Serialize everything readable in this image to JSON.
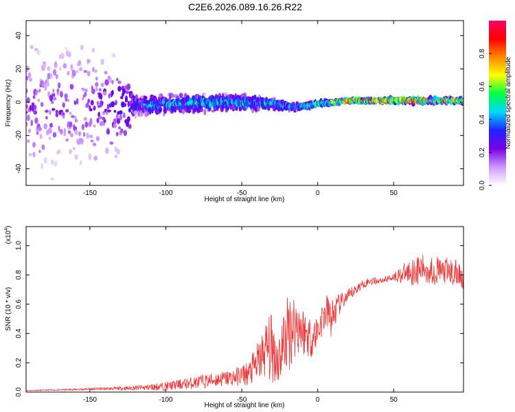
{
  "title": "C2E6.2026.089.16.26.R22",
  "chart_data": [
    {
      "type": "heatmap",
      "xlabel": "Height of straight line (km)",
      "ylabel": "Frequency (Hz)",
      "xlim": [
        -192,
        96
      ],
      "ylim": [
        -50,
        49
      ],
      "xticks": [
        -150,
        -100,
        -50,
        0,
        50
      ],
      "yticks": [
        -40,
        -20,
        0,
        20,
        40
      ],
      "colorbar": {
        "label": "Normalized spectral amplitude",
        "range": [
          0,
          1
        ],
        "ticks": [
          "0.0",
          "0.2",
          "0.4",
          "0.6",
          "0.8"
        ],
        "ticks_values": [
          0.0,
          0.2,
          0.4,
          0.6,
          0.8
        ],
        "colormap": [
          "#ffffff",
          "#cc99ff",
          "#7a00e6",
          "#2222ff",
          "#00d8ff",
          "#00ff44",
          "#ffff00",
          "#ff8800",
          "#ff0000",
          "#ff0066"
        ]
      },
      "spread_hz": [
        [
          -192,
          48
        ],
        [
          -150,
          48
        ],
        [
          -125,
          30
        ],
        [
          -120,
          8
        ],
        [
          -90,
          7
        ],
        [
          -60,
          6
        ],
        [
          -45,
          6
        ],
        [
          -30,
          5
        ],
        [
          -20,
          3
        ],
        [
          -10,
          2
        ],
        [
          0,
          2
        ],
        [
          20,
          1
        ],
        [
          60,
          2
        ],
        [
          96,
          2
        ]
      ],
      "band_center_hz": [
        [
          -150,
          -4
        ],
        [
          -120,
          -2
        ],
        [
          -90,
          -1
        ],
        [
          -60,
          0
        ],
        [
          -30,
          -1
        ],
        [
          -15,
          -3
        ],
        [
          0,
          -1
        ],
        [
          10,
          0
        ],
        [
          20,
          1
        ],
        [
          96,
          1
        ]
      ],
      "peak_amplitude": [
        [
          -192,
          0.2
        ],
        [
          -150,
          0.2
        ],
        [
          -125,
          0.3
        ],
        [
          -110,
          0.45
        ],
        [
          -80,
          0.5
        ],
        [
          -50,
          0.5
        ],
        [
          -30,
          0.5
        ],
        [
          -10,
          0.5
        ],
        [
          0,
          0.6
        ],
        [
          15,
          0.75
        ],
        [
          20,
          0.9
        ],
        [
          60,
          0.95
        ],
        [
          96,
          0.8
        ]
      ]
    },
    {
      "type": "line",
      "xlabel": "Height of straight line (km)",
      "ylabel": "SNR (10 * v/v)",
      "y_multiplier_label": "(x10",
      "y_multiplier_exp": "4",
      "y_multiplier_close": ")",
      "xlim": [
        -192,
        96
      ],
      "ylim": [
        0,
        1.13
      ],
      "xticks": [
        -150,
        -100,
        -50,
        0,
        50
      ],
      "yticks": [
        "0.0",
        "0.2",
        "0.4",
        "0.6",
        "0.8",
        "1.0"
      ],
      "ytick_values": [
        0.0,
        0.2,
        0.4,
        0.6,
        0.8,
        1.0
      ],
      "color": "#ee3333",
      "series": [
        {
          "x": [
            -192,
            -170,
            -150,
            -130,
            -115,
            -100,
            -85,
            -70,
            -55,
            -45,
            -38,
            -34,
            -30,
            -26,
            -22,
            -19,
            -15,
            -12,
            -8,
            -4,
            0,
            3,
            6,
            9,
            12,
            16,
            20,
            25,
            30,
            35,
            40,
            45,
            50,
            55,
            60,
            65,
            70,
            75,
            80,
            85,
            90,
            96
          ],
          "y": [
            0.01,
            0.015,
            0.02,
            0.025,
            0.03,
            0.04,
            0.06,
            0.08,
            0.1,
            0.13,
            0.22,
            0.3,
            0.3,
            0.22,
            0.35,
            0.42,
            0.46,
            0.45,
            0.4,
            0.37,
            0.42,
            0.5,
            0.55,
            0.5,
            0.56,
            0.62,
            0.65,
            0.7,
            0.74,
            0.76,
            0.76,
            0.77,
            0.79,
            0.8,
            0.82,
            0.83,
            0.84,
            0.83,
            0.83,
            0.82,
            0.81,
            0.8
          ],
          "noise": [
            0.003,
            0.004,
            0.008,
            0.012,
            0.02,
            0.03,
            0.04,
            0.05,
            0.06,
            0.09,
            0.16,
            0.2,
            0.25,
            0.18,
            0.25,
            0.28,
            0.24,
            0.2,
            0.16,
            0.14,
            0.12,
            0.12,
            0.12,
            0.14,
            0.1,
            0.06,
            0.05,
            0.04,
            0.03,
            0.03,
            0.02,
            0.02,
            0.03,
            0.06,
            0.09,
            0.1,
            0.1,
            0.1,
            0.1,
            0.1,
            0.1,
            0.1
          ]
        }
      ]
    }
  ]
}
